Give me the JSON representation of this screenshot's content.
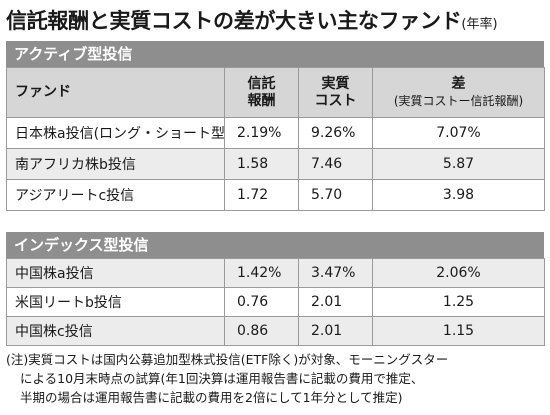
{
  "title": {
    "main": "信託報酬と実質コストの差が大きい主なファンド",
    "unit": "(年率)"
  },
  "columns": {
    "fund": "ファンド",
    "fee_line1": "信託",
    "fee_line2": "報酬",
    "cost_line1": "実質",
    "cost_line2": "コスト",
    "diff_line1": "差",
    "diff_line2": "(実質コストー信託報酬)"
  },
  "sections": [
    {
      "title": "アクティブ型投信",
      "rows": [
        {
          "fund": "日本株a投信(ロング・ショート型)",
          "fee": "2.19%",
          "cost": "9.26%",
          "diff": "7.07%"
        },
        {
          "fund": "南アフリカ株b投信",
          "fee": "1.58",
          "cost": "7.46",
          "diff": "5.87"
        },
        {
          "fund": "アジアリートc投信",
          "fee": "1.72",
          "cost": "5.70",
          "diff": "3.98"
        }
      ]
    },
    {
      "title": "インデックス型投信",
      "rows": [
        {
          "fund": "中国株a投信",
          "fee": "1.42%",
          "cost": "3.47%",
          "diff": "2.06%"
        },
        {
          "fund": "米国リートb投信",
          "fee": "0.76",
          "cost": "2.01",
          "diff": "1.25"
        },
        {
          "fund": "中国株c投信",
          "fee": "0.86",
          "cost": "2.01",
          "diff": "1.15"
        }
      ]
    }
  ],
  "note": [
    "(注)実質コストは国内公募追加型株式投信(ETF除く)が対象、モーニングスター",
    "による10月末時点の試算(年1回決算は運用報告書に記載の費用で推定、",
    "半期の場合は運用報告書に記載の費用を2倍にして1年分として推定)"
  ]
}
